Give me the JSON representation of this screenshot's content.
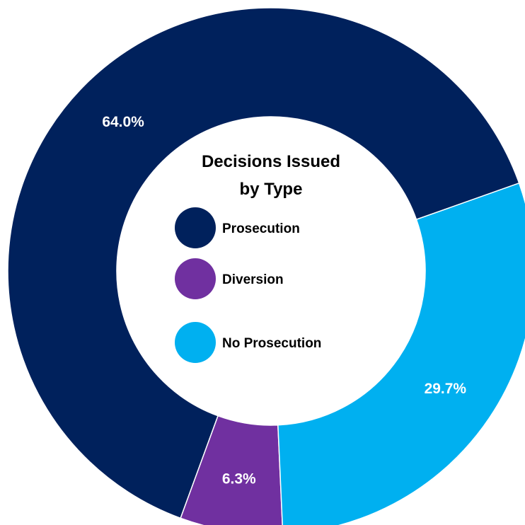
{
  "chart_data": {
    "type": "pie",
    "donut": true,
    "title_lines": [
      "Decisions Issued",
      "by Type"
    ],
    "categories": [
      "Prosecution",
      "Diversion",
      "No Prosecution"
    ],
    "values": [
      64.0,
      6.3,
      29.7
    ],
    "value_labels": [
      "64.0%",
      "6.3%",
      "29.7%"
    ],
    "colors": [
      "#00215C",
      "#7030A0",
      "#00B0F0"
    ],
    "legend_placement": "center",
    "start_angle_deg": 19.5,
    "direction": "counterclockwise"
  }
}
